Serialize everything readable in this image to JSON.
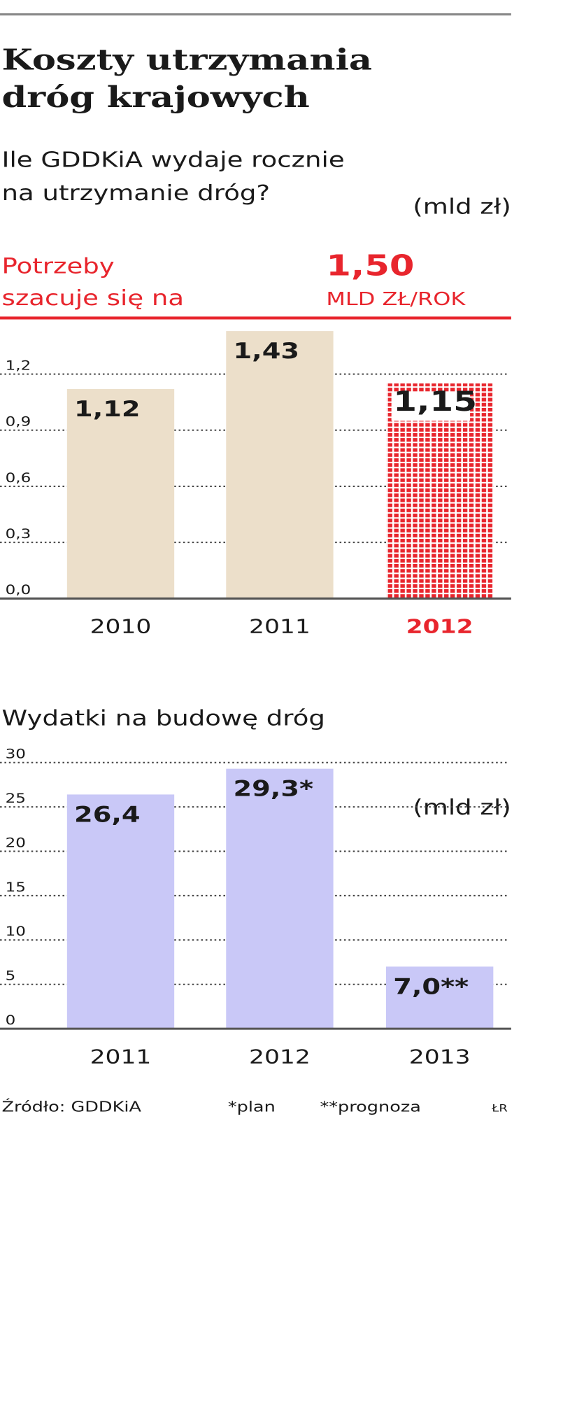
{
  "chart_data": [
    {
      "type": "bar",
      "title": [
        "Koszty utrzymania",
        "dróg krajowych"
      ],
      "subtitle": [
        "Ile GDDKiA wydaje rocznie",
        "na utrzymanie dróg?"
      ],
      "unit": "(mld zł)",
      "reference": {
        "value": 1.5,
        "label": "1,50",
        "unit": "MLD ZŁ/ROK",
        "text": [
          "Potrzeby",
          "szacuje się na"
        ],
        "color": "#e8252d"
      },
      "categories": [
        "2010",
        "2011",
        "2012"
      ],
      "values": [
        1.12,
        1.43,
        1.15
      ],
      "value_labels": [
        "1,12",
        "1,43",
        "1,15"
      ],
      "bar_colors": [
        "#ecdfca",
        "#ecdfca",
        "#e8252d"
      ],
      "pattern": [
        false,
        false,
        true
      ],
      "ylim": [
        0,
        1.5
      ],
      "yticks": [
        {
          "value": 0,
          "label": "0,0"
        },
        {
          "value": 0.3,
          "label": "0,3"
        },
        {
          "value": 0.6,
          "label": "0,6"
        },
        {
          "value": 0.9,
          "label": "0,9"
        },
        {
          "value": 1.2,
          "label": "1,2"
        }
      ],
      "grid": true
    },
    {
      "type": "bar",
      "subtitle": [
        "Wydatki na budowę dróg"
      ],
      "unit": "(mld zł)",
      "categories": [
        "2011",
        "2012",
        "2013"
      ],
      "values": [
        26.4,
        29.3,
        7.0
      ],
      "value_labels": [
        "26,4",
        "29,3*",
        "7,0**"
      ],
      "bar_colors": [
        "#c9c8f7",
        "#c9c8f7",
        "#c9c8f7"
      ],
      "pattern": [
        false,
        false,
        false
      ],
      "ylim": [
        0,
        30
      ],
      "yticks": [
        0,
        5,
        10,
        15,
        20,
        25,
        30
      ],
      "grid": true
    }
  ],
  "footer": {
    "source": "Źródło: GDDKiA",
    "note1": "*plan",
    "note2": "**prognoza",
    "author": "ŁR"
  }
}
